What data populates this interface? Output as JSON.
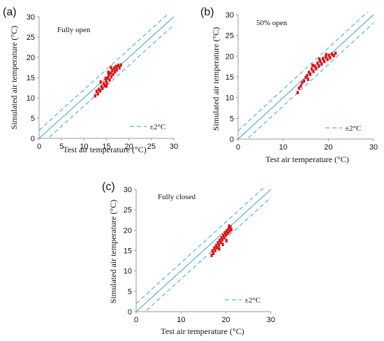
{
  "figure": {
    "panels": [
      {
        "label": "(a)",
        "note": "Fully open",
        "xlabel": "Test air temperature (°C)",
        "ylabel": "Simulated air  temperature (°C)",
        "legend": "±2°C"
      },
      {
        "label": "(b)",
        "note": "50% open",
        "xlabel": "Test air temperature (°C)",
        "ylabel": "Simulated air  temperature (°C)",
        "legend": "±2°C"
      },
      {
        "label": "(c)",
        "note": "Fully closed",
        "xlabel": "Test air temperature (°C)",
        "ylabel": "Simulated air  temperature (°C)",
        "legend": "±2°C"
      }
    ]
  },
  "colors": {
    "line": "#5aaed8",
    "points": "#e01010",
    "axis": "#9a9a9a"
  },
  "chart_data": [
    {
      "type": "scatter",
      "title": "",
      "xlabel": "Test air temperature (°C)",
      "ylabel": "Simulated air  temperature (°C)",
      "xlim": [
        0,
        30
      ],
      "ylim": [
        0,
        30
      ],
      "xticks": [
        0,
        5,
        10,
        15,
        20,
        25,
        30
      ],
      "yticks": [
        0,
        5,
        10,
        15,
        20,
        25,
        30
      ],
      "annotation": "Fully open",
      "legend": "±2°C",
      "legend_position": "bottom-right",
      "reference_lines": [
        {
          "slope": 1,
          "offset": 0,
          "style": "solid"
        },
        {
          "slope": 1,
          "offset": 2,
          "style": "dashed"
        },
        {
          "slope": 1,
          "offset": -2,
          "style": "dashed"
        }
      ],
      "points": [
        [
          12.5,
          10.5
        ],
        [
          12.8,
          11.6
        ],
        [
          13.1,
          11.0
        ],
        [
          13.3,
          12.1
        ],
        [
          13.6,
          11.7
        ],
        [
          13.9,
          12.8
        ],
        [
          14.1,
          12.3
        ],
        [
          14.4,
          13.5
        ],
        [
          14.6,
          13.0
        ],
        [
          14.9,
          14.2
        ],
        [
          15.1,
          13.6
        ],
        [
          15.3,
          14.9
        ],
        [
          15.5,
          15.6
        ],
        [
          15.7,
          14.4
        ],
        [
          15.9,
          16.1
        ],
        [
          16.1,
          15.2
        ],
        [
          16.3,
          16.8
        ],
        [
          16.5,
          15.8
        ],
        [
          16.7,
          17.3
        ],
        [
          16.9,
          16.4
        ],
        [
          17.1,
          17.7
        ],
        [
          17.3,
          16.9
        ],
        [
          17.6,
          18.0
        ],
        [
          17.9,
          17.4
        ],
        [
          18.2,
          18.1
        ],
        [
          14.8,
          14.8
        ],
        [
          15.4,
          16.3
        ],
        [
          16.0,
          17.5
        ],
        [
          13.7,
          13.9
        ],
        [
          15.0,
          12.9
        ]
      ]
    },
    {
      "type": "scatter",
      "title": "",
      "xlabel": "Test air temperature (°C)",
      "ylabel": "Simulated air  temperature (°C)",
      "xlim": [
        0,
        30
      ],
      "ylim": [
        0,
        30
      ],
      "xticks": [
        0,
        10,
        20,
        30
      ],
      "yticks": [
        0,
        5,
        10,
        15,
        20,
        25,
        30
      ],
      "annotation": "50% open",
      "legend": "±2°C",
      "legend_position": "bottom-right",
      "reference_lines": [
        {
          "slope": 1,
          "offset": 0,
          "style": "solid"
        },
        {
          "slope": 1,
          "offset": 2,
          "style": "dashed"
        },
        {
          "slope": 1,
          "offset": -2,
          "style": "dashed"
        }
      ],
      "points": [
        [
          13.2,
          11.2
        ],
        [
          13.5,
          12.3
        ],
        [
          13.9,
          12.8
        ],
        [
          14.2,
          13.6
        ],
        [
          14.6,
          14.0
        ],
        [
          15.0,
          14.9
        ],
        [
          15.3,
          15.3
        ],
        [
          15.7,
          16.1
        ],
        [
          16.0,
          15.6
        ],
        [
          16.3,
          16.9
        ],
        [
          16.7,
          16.3
        ],
        [
          17.0,
          17.6
        ],
        [
          17.3,
          17.0
        ],
        [
          17.6,
          18.3
        ],
        [
          17.9,
          17.6
        ],
        [
          18.2,
          18.8
        ],
        [
          18.5,
          18.1
        ],
        [
          18.8,
          19.4
        ],
        [
          19.1,
          18.7
        ],
        [
          19.4,
          19.8
        ],
        [
          19.8,
          19.2
        ],
        [
          20.1,
          20.2
        ],
        [
          20.4,
          19.6
        ],
        [
          20.8,
          20.5
        ],
        [
          21.2,
          20.1
        ],
        [
          21.6,
          20.7
        ],
        [
          16.5,
          17.8
        ],
        [
          18.0,
          19.3
        ],
        [
          19.5,
          20.4
        ],
        [
          15.5,
          14.4
        ]
      ]
    },
    {
      "type": "scatter",
      "title": "",
      "xlabel": "Test air temperature (°C)",
      "ylabel": "Simulated air  temperature (°C)",
      "xlim": [
        0,
        30
      ],
      "ylim": [
        0,
        30
      ],
      "xticks": [
        0,
        10,
        20,
        30
      ],
      "yticks": [
        0,
        5,
        10,
        15,
        20,
        25,
        30
      ],
      "annotation": "Fully closed",
      "legend": "±2°C",
      "legend_position": "bottom-right",
      "reference_lines": [
        {
          "slope": 1,
          "offset": 0,
          "style": "solid"
        },
        {
          "slope": 1,
          "offset": 2,
          "style": "dashed"
        },
        {
          "slope": 1,
          "offset": -2,
          "style": "dashed"
        }
      ],
      "points": [
        [
          16.8,
          13.8
        ],
        [
          17.0,
          14.9
        ],
        [
          17.2,
          14.3
        ],
        [
          17.4,
          15.6
        ],
        [
          17.6,
          15.0
        ],
        [
          17.8,
          16.2
        ],
        [
          18.0,
          15.7
        ],
        [
          18.2,
          16.9
        ],
        [
          18.4,
          16.3
        ],
        [
          18.6,
          17.5
        ],
        [
          18.8,
          17.0
        ],
        [
          19.0,
          18.1
        ],
        [
          19.2,
          17.6
        ],
        [
          19.4,
          18.7
        ],
        [
          19.6,
          18.2
        ],
        [
          19.8,
          19.3
        ],
        [
          20.0,
          18.8
        ],
        [
          20.2,
          19.8
        ],
        [
          20.4,
          19.2
        ],
        [
          20.6,
          20.3
        ],
        [
          20.8,
          19.7
        ],
        [
          21.0,
          20.8
        ],
        [
          21.2,
          20.1
        ],
        [
          20.1,
          17.4
        ],
        [
          19.3,
          16.5
        ],
        [
          18.5,
          15.4
        ],
        [
          20.7,
          21.0
        ]
      ]
    }
  ]
}
